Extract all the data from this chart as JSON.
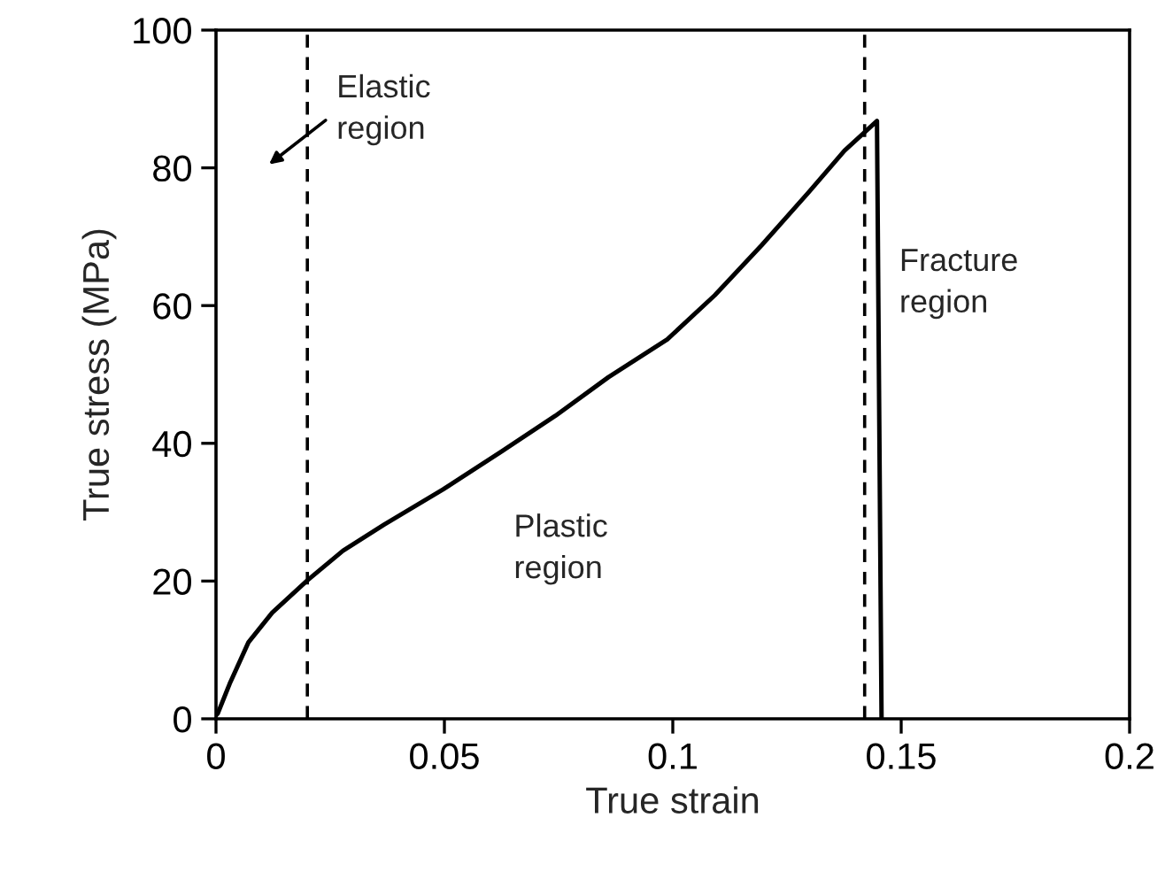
{
  "chart_data": {
    "type": "line",
    "xlabel": "True strain",
    "ylabel": "True stress (MPa)",
    "xlim": [
      0,
      0.2
    ],
    "xticks": [
      0,
      0.05,
      0.1,
      0.15,
      0.2
    ],
    "ylim": [
      0,
      100
    ],
    "yticks": [
      0,
      20,
      40,
      60,
      80,
      100
    ],
    "series": [
      {
        "color": "#000000",
        "line_style": "solid",
        "x": [
          0,
          0.0004,
          0.003,
          0.0071,
          0.0123,
          0.02,
          0.0278,
          0.0368,
          0.0497,
          0.0627,
          0.0743,
          0.0859,
          0.0988,
          0.1092,
          0.1195,
          0.1298,
          0.1376,
          0.1447,
          0.1457
        ],
        "values": [
          0.5,
          0.8,
          5.1,
          11.1,
          15.4,
          20.1,
          24.4,
          28.2,
          33.3,
          38.9,
          44.0,
          49.6,
          55.1,
          61.5,
          68.8,
          76.5,
          82.5,
          86.8,
          0
        ]
      }
    ],
    "ref_lines": [
      {
        "axis": "x",
        "value": 0.02,
        "color": "#000000",
        "line_style": "dashed"
      },
      {
        "axis": "x",
        "value": 0.142,
        "color": "#000000",
        "line_style": "dashed"
      }
    ],
    "annotations": [
      "Elastic\nregion",
      "Plastic\nregion",
      "Fracture\nregion"
    ],
    "grid": false,
    "legend": false,
    "marker": "none"
  }
}
